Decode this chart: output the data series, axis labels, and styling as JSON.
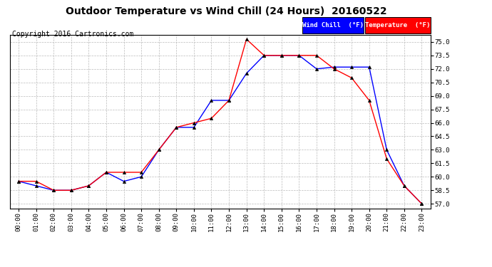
{
  "title": "Outdoor Temperature vs Wind Chill (24 Hours)  20160522",
  "copyright": "Copyright 2016 Cartronics.com",
  "x_labels": [
    "00:00",
    "01:00",
    "02:00",
    "03:00",
    "04:00",
    "05:00",
    "06:00",
    "07:00",
    "08:00",
    "09:00",
    "10:00",
    "11:00",
    "12:00",
    "13:00",
    "14:00",
    "15:00",
    "16:00",
    "17:00",
    "18:00",
    "19:00",
    "20:00",
    "21:00",
    "22:00",
    "23:00"
  ],
  "temperature": [
    59.5,
    59.5,
    58.5,
    58.5,
    59.0,
    60.5,
    60.5,
    60.5,
    63.0,
    65.5,
    66.0,
    66.5,
    68.5,
    75.3,
    73.5,
    73.5,
    73.5,
    73.5,
    72.0,
    71.0,
    68.5,
    62.0,
    59.0,
    57.0
  ],
  "wind_chill": [
    59.5,
    59.0,
    58.5,
    58.5,
    59.0,
    60.5,
    59.5,
    60.0,
    63.0,
    65.5,
    65.5,
    68.5,
    68.5,
    71.5,
    73.5,
    73.5,
    73.5,
    72.0,
    72.2,
    72.2,
    72.2,
    63.0,
    59.0,
    57.0
  ],
  "temp_color": "#ff0000",
  "wind_chill_color": "#0000ff",
  "bg_color": "#ffffff",
  "plot_bg_color": "#ffffff",
  "grid_color": "#bbbbbb",
  "ylim": [
    56.5,
    75.8
  ],
  "yticks": [
    57.0,
    58.5,
    60.0,
    61.5,
    63.0,
    64.5,
    66.0,
    67.5,
    69.0,
    70.5,
    72.0,
    73.5,
    75.0
  ],
  "legend_wind_chill_bg": "#0000ff",
  "legend_temp_bg": "#ff0000",
  "legend_text_color": "#ffffff",
  "title_fontsize": 10,
  "copyright_fontsize": 7
}
